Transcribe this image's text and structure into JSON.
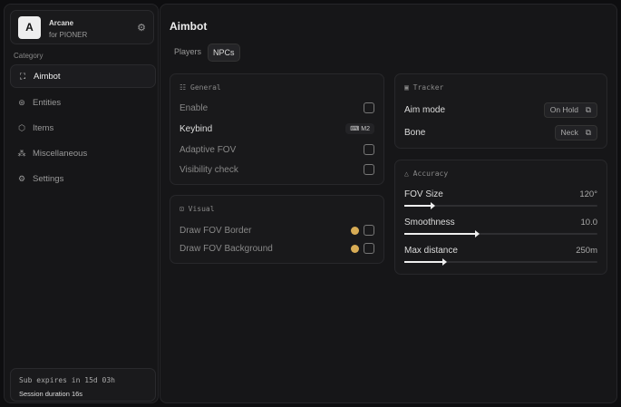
{
  "brand": {
    "name": "Arcane",
    "subtitle": "for PIONER",
    "logo": "A",
    "settings_icon": "gear-icon"
  },
  "sidebar": {
    "category_label": "Category",
    "items": [
      {
        "label": "Aimbot",
        "icon": "crosshair-icon",
        "active": true
      },
      {
        "label": "Entities",
        "icon": "entities-icon"
      },
      {
        "label": "Items",
        "icon": "cube-icon"
      },
      {
        "label": "Miscellaneous",
        "icon": "misc-icon"
      },
      {
        "label": "Settings",
        "icon": "gear-icon"
      }
    ]
  },
  "subscription": {
    "expires": "Sub expires in 15d 03h",
    "session": "Session duration 16s"
  },
  "main": {
    "title": "Aimbot",
    "tabs": [
      {
        "label": "Players"
      },
      {
        "label": "NPCs",
        "active": true
      }
    ]
  },
  "general": {
    "title": "General",
    "enable": "Enable",
    "keybind": "Keybind",
    "keybind_value": "M2",
    "adaptive_fov": "Adaptive FOV",
    "visibility_check": "Visibility check"
  },
  "visual": {
    "title": "Visual",
    "draw_border": "Draw FOV Border",
    "draw_background": "Draw FOV Background",
    "color": "#d8ac55"
  },
  "tracker": {
    "title": "Tracker",
    "aim_mode": "Aim mode",
    "aim_mode_value": "On Hold",
    "bone": "Bone",
    "bone_value": "Neck"
  },
  "accuracy": {
    "title": "Accuracy",
    "sliders": [
      {
        "label": "FOV Size",
        "value": "120°",
        "fill": 0.15
      },
      {
        "label": "Smoothness",
        "value": "10.0",
        "fill": 0.38
      },
      {
        "label": "Max distance",
        "value": "250m",
        "fill": 0.21
      }
    ]
  }
}
